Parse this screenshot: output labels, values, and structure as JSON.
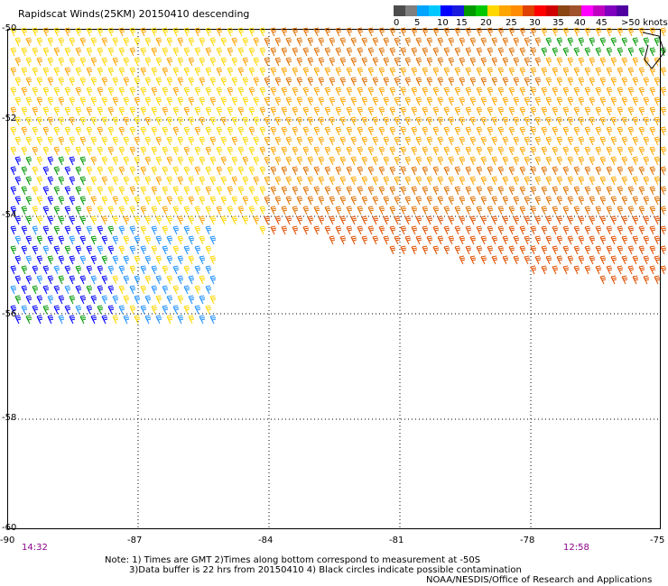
{
  "title": "Rapidscat Winds(25KM) 20150410 descending",
  "legend": {
    "colors": [
      "#4d4d4d",
      "#7f7f7f",
      "#00a5ff",
      "#00c8ff",
      "#0000ff",
      "#1a1adf",
      "#009900",
      "#00c800",
      "#ffd700",
      "#ffa500",
      "#ff8c00",
      "#e04000",
      "#ff0000",
      "#d00000",
      "#8b4513",
      "#a0522d",
      "#ff00ff",
      "#c000c0",
      "#8000c0",
      "#5000a0"
    ],
    "labels": [
      "0",
      "5",
      "10",
      "15",
      "20",
      "25",
      "30",
      "35",
      "40",
      "45",
      ">50 knots"
    ]
  },
  "map": {
    "lat_ticks": [
      "-50",
      "-52",
      "-54",
      "-56",
      "-58",
      "-60"
    ],
    "lon_ticks": [
      "-90",
      "-87",
      "-84",
      "-81",
      "-78",
      "-75"
    ],
    "lat_range": [
      -60,
      -50
    ],
    "lon_range": [
      -90,
      -75
    ],
    "grid": true,
    "left_time": "14:32",
    "right_time": "12:58"
  },
  "notes": {
    "line1": "Note: 1) Times are GMT 2)Times along bottom correspond to measurement at -50S",
    "line2": "3)Data buffer is 22 hrs from 20150410 4) Black circles indicate possible contamination",
    "line3": "NOAA/NESDIS/Office of Research and Applications"
  }
}
